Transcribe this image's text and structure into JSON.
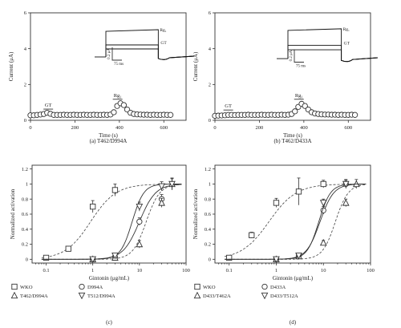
{
  "chart_data": [
    {
      "panel": "a",
      "type": "scatter",
      "caption": "(a)  T462/D994A",
      "xlabel": "Time (s)",
      "ylabel": "Current (μA)",
      "xlim": [
        0,
        700
      ],
      "ylim": [
        0,
        6
      ],
      "xticks": [
        0,
        200,
        400,
        600
      ],
      "yticks": [
        0,
        2,
        4,
        6
      ],
      "annotations": [
        {
          "text": "GT",
          "x": 80,
          "y": 0.4
        },
        {
          "text": "Rg₁",
          "x": 392,
          "y": 0.95
        }
      ],
      "series": [
        {
          "marker": "circle",
          "x": [
            0,
            15,
            30,
            45,
            60,
            75,
            90,
            105,
            120,
            135,
            150,
            165,
            180,
            195,
            210,
            225,
            240,
            255,
            270,
            285,
            300,
            315,
            330,
            345,
            360,
            375,
            390,
            405,
            420,
            435,
            450,
            465,
            480,
            495,
            510,
            525,
            540,
            555,
            570,
            585,
            600,
            615,
            630
          ],
          "y": [
            0.28,
            0.28,
            0.3,
            0.32,
            0.35,
            0.42,
            0.36,
            0.3,
            0.3,
            0.3,
            0.31,
            0.3,
            0.3,
            0.31,
            0.3,
            0.3,
            0.31,
            0.3,
            0.3,
            0.31,
            0.3,
            0.3,
            0.31,
            0.3,
            0.32,
            0.45,
            0.8,
            0.95,
            0.85,
            0.6,
            0.42,
            0.35,
            0.33,
            0.32,
            0.31,
            0.31,
            0.3,
            0.31,
            0.3,
            0.3,
            0.31,
            0.3,
            0.3
          ]
        }
      ],
      "inset": {
        "labels": [
          "Rg₁",
          "GT"
        ],
        "scale_current": "0.2 μA",
        "scale_time": "75 ms"
      }
    },
    {
      "panel": "b",
      "type": "scatter",
      "caption": "(b)  T462/D433A",
      "xlabel": "Time (s)",
      "ylabel": "Current (μA)",
      "xlim": [
        0,
        700
      ],
      "ylim": [
        0,
        6
      ],
      "xticks": [
        0,
        200,
        400,
        600
      ],
      "yticks": [
        0,
        2,
        4,
        6
      ],
      "annotations": [
        {
          "text": "GT",
          "x": 60,
          "y": 0.35
        },
        {
          "text": "Rg₁",
          "x": 378,
          "y": 0.95
        }
      ],
      "series": [
        {
          "marker": "circle",
          "x": [
            0,
            15,
            30,
            45,
            60,
            75,
            90,
            105,
            120,
            135,
            150,
            165,
            180,
            195,
            210,
            225,
            240,
            255,
            270,
            285,
            300,
            315,
            330,
            345,
            360,
            375,
            390,
            405,
            420,
            435,
            450,
            465,
            480,
            495,
            510,
            525,
            540,
            555,
            570,
            585,
            600,
            615,
            630
          ],
          "y": [
            0.25,
            0.26,
            0.27,
            0.28,
            0.3,
            0.3,
            0.29,
            0.3,
            0.3,
            0.3,
            0.31,
            0.3,
            0.3,
            0.3,
            0.31,
            0.3,
            0.3,
            0.31,
            0.3,
            0.3,
            0.31,
            0.3,
            0.31,
            0.35,
            0.5,
            0.75,
            0.92,
            0.8,
            0.6,
            0.45,
            0.38,
            0.35,
            0.33,
            0.32,
            0.32,
            0.31,
            0.31,
            0.3,
            0.31,
            0.3,
            0.3,
            0.31,
            0.3
          ]
        }
      ],
      "inset": {
        "labels": [
          "Rg₁",
          "GT"
        ],
        "scale_current": "0.2 μA",
        "scale_time": "75 ms"
      }
    },
    {
      "panel": "c",
      "type": "scatter",
      "caption": "(c)",
      "xlabel": "Gintonin (μg/mL)",
      "ylabel": "Normalized activation",
      "xscale": "log",
      "xlim": [
        0.05,
        100
      ],
      "ylim": [
        -0.05,
        1.25
      ],
      "xticks": [
        0.1,
        1,
        10,
        100
      ],
      "yticks": [
        0,
        0.2,
        0.4,
        0.6,
        0.8,
        1,
        1.2
      ],
      "legend_position": "bottom",
      "series": [
        {
          "name": "WKO",
          "marker": "square",
          "ec50": 0.9,
          "hill": 1.6,
          "x": [
            0.1,
            0.3,
            1,
            3
          ],
          "y": [
            0.02,
            0.14,
            0.7,
            0.92
          ],
          "err": [
            0.01,
            0.02,
            0.08,
            0.08
          ]
        },
        {
          "name": "D994A",
          "marker": "circle",
          "ec50": 10,
          "hill": 2.5,
          "x": [
            1,
            3,
            10,
            30
          ],
          "y": [
            0.0,
            0.03,
            0.5,
            0.8
          ],
          "err": [
            0.01,
            0.02,
            0.05,
            0.06
          ]
        },
        {
          "name": "T462/D994A",
          "marker": "triangle-up",
          "ec50": 14,
          "hill": 3,
          "x": [
            1,
            3,
            10,
            30,
            50
          ],
          "y": [
            0.0,
            0.02,
            0.2,
            0.75,
            1.0
          ],
          "err": [
            0.01,
            0.02,
            0.05,
            0.06,
            0.08
          ]
        },
        {
          "name": "T512/D994A",
          "marker": "triangle-down",
          "ec50": 7,
          "hill": 3.5,
          "x": [
            1,
            3,
            10,
            30,
            50
          ],
          "y": [
            0.0,
            0.05,
            0.7,
            0.97,
            1.0
          ],
          "err": [
            0.01,
            0.03,
            0.06,
            0.06,
            0.07
          ]
        }
      ]
    },
    {
      "panel": "d",
      "type": "scatter",
      "caption": "(d)",
      "xlabel": "Gintonin (μg/mL)",
      "ylabel": "Normalized activation",
      "xscale": "log",
      "xlim": [
        0.05,
        100
      ],
      "ylim": [
        -0.05,
        1.25
      ],
      "xticks": [
        0.1,
        1,
        10,
        100
      ],
      "yticks": [
        0,
        0.2,
        0.4,
        0.6,
        0.8,
        1,
        1.2
      ],
      "legend_position": "bottom",
      "series": [
        {
          "name": "WKO",
          "marker": "square",
          "ec50": 0.7,
          "hill": 1.5,
          "x": [
            0.1,
            0.3,
            1,
            3,
            10
          ],
          "y": [
            0.02,
            0.32,
            0.75,
            0.9,
            1.0
          ],
          "err": [
            0.01,
            0.04,
            0.06,
            0.18,
            0.05
          ]
        },
        {
          "name": "D433A",
          "marker": "circle",
          "ec50": 8.5,
          "hill": 3,
          "x": [
            1,
            3,
            10,
            30
          ],
          "y": [
            0.0,
            0.05,
            0.65,
            1.0
          ],
          "err": [
            0.01,
            0.02,
            0.05,
            0.06
          ]
        },
        {
          "name": "D433/T462A",
          "marker": "triangle-up",
          "ec50": 18,
          "hill": 3.2,
          "x": [
            1,
            3,
            10,
            30,
            50
          ],
          "y": [
            0.0,
            0.04,
            0.22,
            0.75,
            1.0
          ],
          "err": [
            0.01,
            0.02,
            0.03,
            0.05,
            0.06
          ]
        },
        {
          "name": "D433/T512A",
          "marker": "triangle-down",
          "ec50": 8,
          "hill": 3.5,
          "x": [
            1,
            3,
            10,
            30
          ],
          "y": [
            0.0,
            0.05,
            0.75,
            1.0
          ],
          "err": [
            0.01,
            0.02,
            0.05,
            0.05
          ]
        }
      ]
    }
  ]
}
